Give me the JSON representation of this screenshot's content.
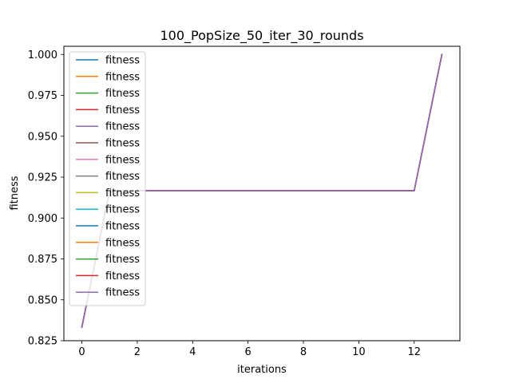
{
  "chart_data": {
    "type": "line",
    "title": "100_PopSize_50_iter_30_rounds",
    "xlabel": "iterations",
    "ylabel": "fitness",
    "xlim": [
      -0.65,
      13.65
    ],
    "ylim": [
      0.825,
      1.005
    ],
    "x_ticks": [
      0,
      2,
      4,
      6,
      8,
      10,
      12
    ],
    "x_tick_labels": [
      "0",
      "2",
      "4",
      "6",
      "8",
      "10",
      "12"
    ],
    "y_ticks": [
      0.825,
      0.85,
      0.875,
      0.9,
      0.925,
      0.95,
      0.975,
      1.0
    ],
    "y_tick_labels": [
      "0.825",
      "0.850",
      "0.875",
      "0.900",
      "0.925",
      "0.950",
      "0.975",
      "1.000"
    ],
    "grid": false,
    "legend_position": "top-left",
    "x": [
      0,
      1,
      2,
      3,
      4,
      5,
      6,
      7,
      8,
      9,
      10,
      11,
      12,
      13
    ],
    "series": [
      {
        "name": "fitness",
        "color": "#1f77b4",
        "values": [
          0.8333,
          0.9167,
          0.9167,
          0.9167,
          0.9167,
          0.9167,
          0.9167,
          0.9167,
          0.9167,
          0.9167,
          0.9167,
          0.9167,
          0.9167,
          1.0
        ]
      },
      {
        "name": "fitness",
        "color": "#ff7f0e",
        "values": [
          0.8333,
          0.9167,
          0.9167,
          0.9167,
          0.9167,
          0.9167,
          0.9167,
          0.9167,
          0.9167,
          0.9167,
          0.9167,
          0.9167,
          0.9167,
          1.0
        ]
      },
      {
        "name": "fitness",
        "color": "#2ca02c",
        "values": [
          0.8333,
          0.9167,
          0.9167,
          0.9167,
          0.9167,
          0.9167,
          0.9167,
          0.9167,
          0.9167,
          0.9167,
          0.9167,
          0.9167,
          0.9167,
          1.0
        ]
      },
      {
        "name": "fitness",
        "color": "#d62728",
        "values": [
          0.8333,
          0.9167,
          0.9167,
          0.9167,
          0.9167,
          0.9167,
          0.9167,
          0.9167,
          0.9167,
          0.9167,
          0.9167,
          0.9167,
          0.9167,
          1.0
        ]
      },
      {
        "name": "fitness",
        "color": "#9467bd",
        "values": [
          0.8333,
          0.9167,
          0.9167,
          0.9167,
          0.9167,
          0.9167,
          0.9167,
          0.9167,
          0.9167,
          0.9167,
          0.9167,
          0.9167,
          0.9167,
          1.0
        ]
      },
      {
        "name": "fitness",
        "color": "#8c564b",
        "values": [
          0.8333,
          0.9167,
          0.9167,
          0.9167,
          0.9167,
          0.9167,
          0.9167,
          0.9167,
          0.9167,
          0.9167,
          0.9167,
          0.9167,
          0.9167,
          1.0
        ]
      },
      {
        "name": "fitness",
        "color": "#e377c2",
        "values": [
          0.8333,
          0.9167,
          0.9167,
          0.9167,
          0.9167,
          0.9167,
          0.9167,
          0.9167,
          0.9167,
          0.9167,
          0.9167,
          0.9167,
          0.9167,
          1.0
        ]
      },
      {
        "name": "fitness",
        "color": "#7f7f7f",
        "values": [
          0.8333,
          0.9167,
          0.9167,
          0.9167,
          0.9167,
          0.9167,
          0.9167,
          0.9167,
          0.9167,
          0.9167,
          0.9167,
          0.9167,
          0.9167,
          1.0
        ]
      },
      {
        "name": "fitness",
        "color": "#bcbd22",
        "values": [
          0.8333,
          0.9167,
          0.9167,
          0.9167,
          0.9167,
          0.9167,
          0.9167,
          0.9167,
          0.9167,
          0.9167,
          0.9167,
          0.9167,
          0.9167,
          1.0
        ]
      },
      {
        "name": "fitness",
        "color": "#17becf",
        "values": [
          0.8333,
          0.9167,
          0.9167,
          0.9167,
          0.9167,
          0.9167,
          0.9167,
          0.9167,
          0.9167,
          0.9167,
          0.9167,
          0.9167,
          0.9167,
          1.0
        ]
      },
      {
        "name": "fitness",
        "color": "#1f77b4",
        "values": [
          0.8333,
          0.9167,
          0.9167,
          0.9167,
          0.9167,
          0.9167,
          0.9167,
          0.9167,
          0.9167,
          0.9167,
          0.9167,
          0.9167,
          0.9167,
          1.0
        ]
      },
      {
        "name": "fitness",
        "color": "#ff7f0e",
        "values": [
          0.8333,
          0.9167,
          0.9167,
          0.9167,
          0.9167,
          0.9167,
          0.9167,
          0.9167,
          0.9167,
          0.9167,
          0.9167,
          0.9167,
          0.9167,
          1.0
        ]
      },
      {
        "name": "fitness",
        "color": "#2ca02c",
        "values": [
          0.8333,
          0.9167,
          0.9167,
          0.9167,
          0.9167,
          0.9167,
          0.9167,
          0.9167,
          0.9167,
          0.9167,
          0.9167,
          0.9167,
          0.9167,
          1.0
        ]
      },
      {
        "name": "fitness",
        "color": "#d62728",
        "values": [
          0.8333,
          0.9167,
          0.9167,
          0.9167,
          0.9167,
          0.9167,
          0.9167,
          0.9167,
          0.9167,
          0.9167,
          0.9167,
          0.9167,
          0.9167,
          1.0
        ]
      },
      {
        "name": "fitness",
        "color": "#9467bd",
        "values": [
          0.8333,
          0.9167,
          0.9167,
          0.9167,
          0.9167,
          0.9167,
          0.9167,
          0.9167,
          0.9167,
          0.9167,
          0.9167,
          0.9167,
          0.9167,
          1.0
        ]
      }
    ]
  }
}
